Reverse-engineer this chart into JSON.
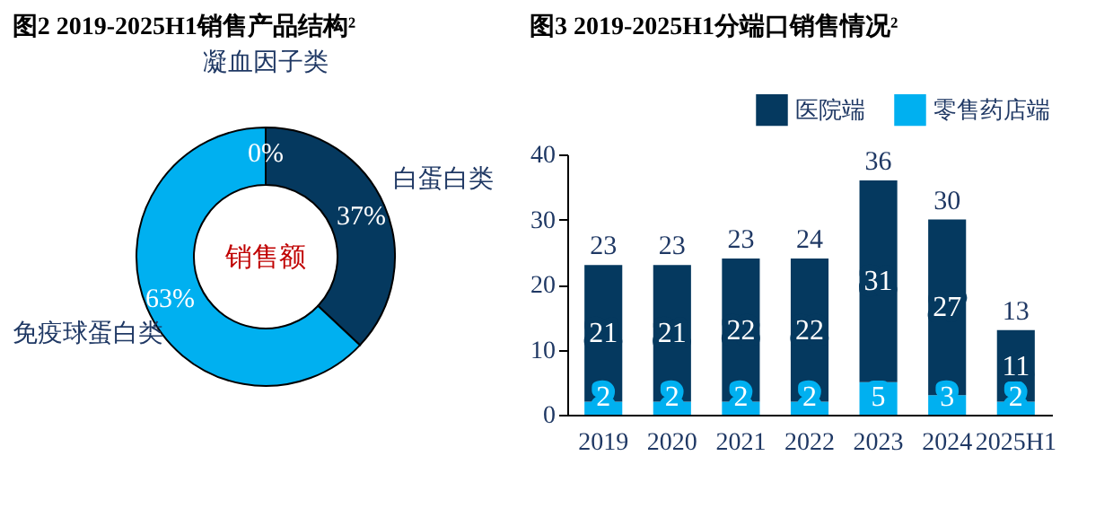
{
  "chart_data": [
    {
      "type": "donut",
      "title": "图2 2019-2025H1销售产品结构²",
      "categories": [
        "凝血因子类",
        "白蛋白类",
        "免疫球蛋白类"
      ],
      "values": [
        0,
        37,
        63
      ],
      "colors": [
        "#dbe9f2",
        "#05395f",
        "#00b0f0"
      ],
      "value_labels": [
        "0%",
        "37%",
        "63%"
      ],
      "annotations": [
        "销售额"
      ],
      "legend": false
    },
    {
      "type": "bar",
      "title": "图3 2019-2025H1分端口销售情况²",
      "categories": [
        "2019",
        "2020",
        "2021",
        "2022",
        "2023",
        "2024",
        "2025H1"
      ],
      "stacked": true,
      "series": [
        {
          "name": "零售药店端",
          "color": "#00b0f0",
          "values": [
            2,
            2,
            2,
            2,
            5,
            3,
            2
          ]
        },
        {
          "name": "医院端",
          "color": "#05395f",
          "values": [
            21,
            21,
            22,
            22,
            31,
            27,
            11
          ]
        }
      ],
      "data_labels": true,
      "totals": [
        "23",
        "23",
        "23",
        "24",
        "36",
        "30",
        "13"
      ],
      "ylim": [
        0,
        40
      ],
      "yticks": [
        0,
        10,
        20,
        30,
        40
      ],
      "grid": false,
      "legend": "top right"
    }
  ]
}
